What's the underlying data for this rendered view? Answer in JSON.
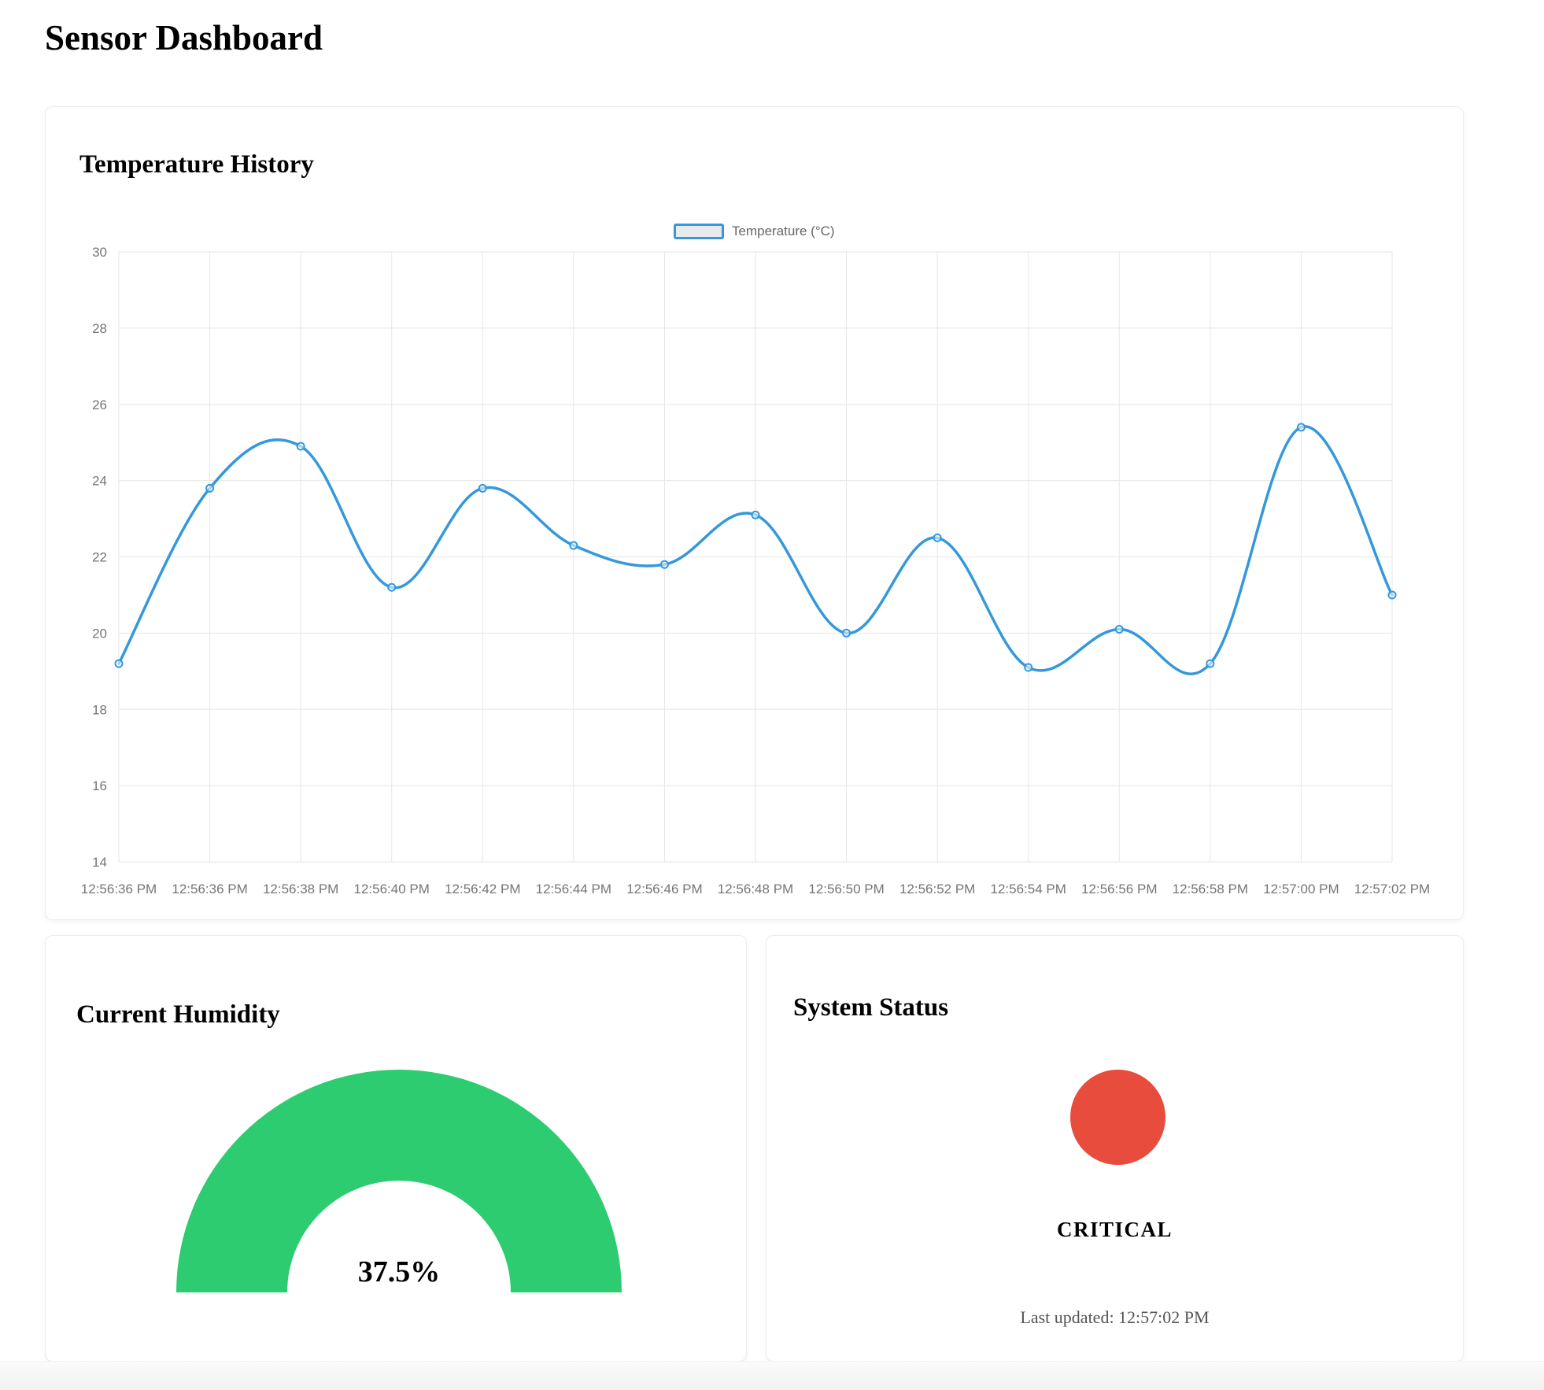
{
  "page": {
    "title": "Sensor Dashboard"
  },
  "temperature_card": {
    "title": "Temperature History",
    "legend_label": "Temperature (°C)"
  },
  "chart_data": {
    "type": "line",
    "title": "Temperature History",
    "legend_position": "top",
    "legend_entries": [
      "Temperature (°C)"
    ],
    "categories": [
      "12:56:36 PM",
      "12:56:36 PM",
      "12:56:38 PM",
      "12:56:40 PM",
      "12:56:42 PM",
      "12:56:44 PM",
      "12:56:46 PM",
      "12:56:48 PM",
      "12:56:50 PM",
      "12:56:52 PM",
      "12:56:54 PM",
      "12:56:56 PM",
      "12:56:58 PM",
      "12:57:00 PM",
      "12:57:02 PM"
    ],
    "series": [
      {
        "name": "Temperature (°C)",
        "values": [
          19.2,
          23.8,
          24.9,
          21.2,
          23.8,
          22.3,
          21.8,
          23.1,
          20.0,
          22.5,
          19.1,
          20.1,
          19.2,
          25.4,
          21.0
        ]
      }
    ],
    "ylim": [
      14,
      30
    ],
    "ytick_step": 2,
    "grid": true,
    "xlabel": "",
    "ylabel": "",
    "colors": {
      "line": "#3498db",
      "point_fill": "#ffffff",
      "grid": "#e6e6e6",
      "tick_text": "#757575",
      "legend_swatch_fill": "#e8ebee",
      "legend_swatch_border": "#3498db"
    }
  },
  "humidity_card": {
    "title": "Current Humidity",
    "value": 37.5,
    "value_label": "37.5%",
    "gauge_color": "#2ecc71"
  },
  "status_card": {
    "title": "System Status",
    "status": "CRITICAL",
    "status_color": "#e74c3c",
    "last_updated": "Last updated: 12:57:02 PM"
  }
}
